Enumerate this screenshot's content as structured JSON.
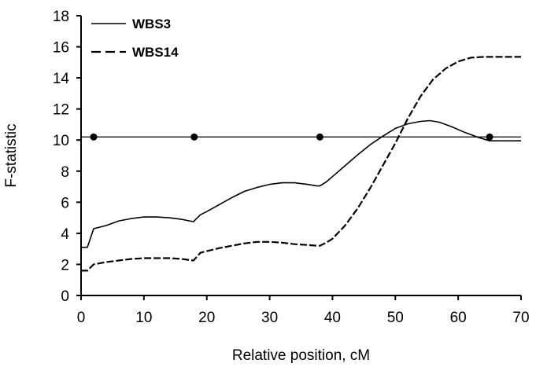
{
  "chart_data": {
    "type": "line",
    "xlabel": "Relative position, cM",
    "ylabel": "F-statistic",
    "xlim": [
      0,
      70
    ],
    "ylim": [
      0,
      18
    ],
    "x_ticks": [
      "0",
      "10",
      "20",
      "30",
      "40",
      "50",
      "60",
      "70"
    ],
    "y_ticks": [
      "0",
      "2",
      "4",
      "6",
      "8",
      "10",
      "12",
      "14",
      "16",
      "18"
    ],
    "grid": false,
    "legend_position": "top-left",
    "threshold": {
      "y": 10.2,
      "x_range": [
        0,
        70
      ]
    },
    "markers": [
      {
        "x": 2,
        "y": 10.2
      },
      {
        "x": 18,
        "y": 10.2
      },
      {
        "x": 38,
        "y": 10.2
      },
      {
        "x": 65,
        "y": 10.2
      }
    ],
    "series": [
      {
        "name": "WBS3",
        "style": "solid",
        "x": [
          0,
          1,
          2,
          4,
          6,
          8,
          10,
          12,
          14,
          16,
          17.9,
          18,
          19,
          20,
          22,
          24,
          26,
          28,
          30,
          32,
          34,
          36,
          37.5,
          38,
          39,
          40,
          42,
          44,
          46,
          48,
          50,
          52,
          54,
          55.5,
          57,
          59,
          61,
          63,
          65,
          66,
          68,
          70
        ],
        "y": [
          3.1,
          3.1,
          4.3,
          4.5,
          4.8,
          4.95,
          5.05,
          5.05,
          5.0,
          4.9,
          4.75,
          4.8,
          5.2,
          5.4,
          5.85,
          6.3,
          6.7,
          6.95,
          7.15,
          7.25,
          7.25,
          7.15,
          7.05,
          7.05,
          7.3,
          7.65,
          8.35,
          9.05,
          9.7,
          10.25,
          10.75,
          11.05,
          11.2,
          11.25,
          11.15,
          10.85,
          10.5,
          10.2,
          9.95,
          9.95,
          9.95,
          9.95
        ]
      },
      {
        "name": "WBS14",
        "style": "dashed",
        "x": [
          0,
          1,
          2,
          4,
          6,
          8,
          10,
          12,
          14,
          16,
          17.9,
          18,
          19,
          20,
          22,
          24,
          26,
          28,
          30,
          32,
          34,
          36,
          37.5,
          38,
          39,
          40,
          42,
          44,
          46,
          48,
          50,
          52,
          54,
          56,
          58,
          60,
          62,
          64,
          65,
          66,
          68,
          70
        ],
        "y": [
          1.6,
          1.6,
          2.0,
          2.15,
          2.25,
          2.35,
          2.4,
          2.4,
          2.4,
          2.35,
          2.25,
          2.3,
          2.75,
          2.85,
          3.05,
          3.2,
          3.35,
          3.45,
          3.45,
          3.4,
          3.3,
          3.25,
          3.2,
          3.2,
          3.4,
          3.65,
          4.5,
          5.6,
          6.9,
          8.35,
          9.8,
          11.4,
          12.8,
          13.9,
          14.6,
          15.05,
          15.3,
          15.35,
          15.35,
          15.35,
          15.35,
          15.35
        ]
      }
    ]
  }
}
